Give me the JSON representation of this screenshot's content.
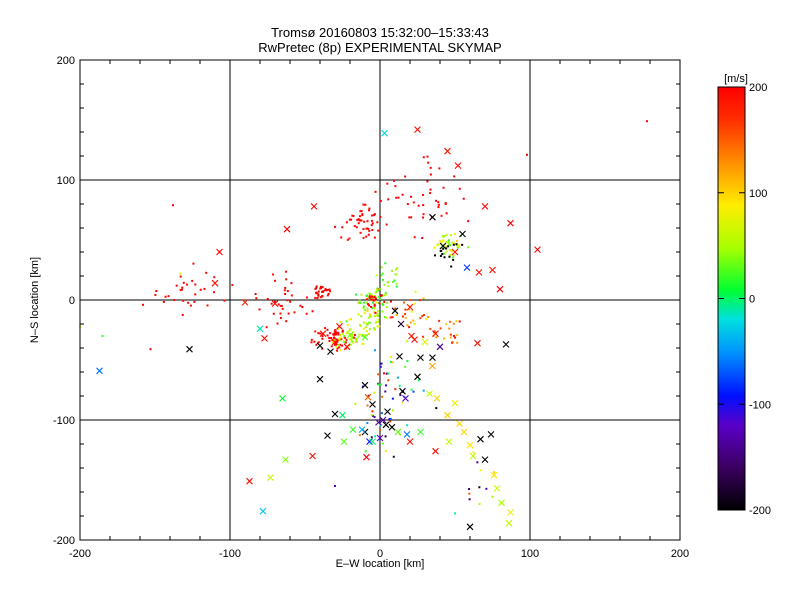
{
  "chart_data": {
    "type": "scatter",
    "title": "Tromsø 20160803 15:32:00–15:33:43",
    "subtitle": "RwPretec (8p) EXPERIMENTAL SKYMAP",
    "xlabel": "E–W location [km]",
    "ylabel": "N–S location [km]",
    "xlim": [
      -200,
      200
    ],
    "ylim": [
      -200,
      200
    ],
    "x_ticks": [
      "-200",
      "-100",
      "0",
      "100",
      "200"
    ],
    "y_ticks": [
      "-200",
      "-100",
      "0",
      "100",
      "200"
    ],
    "grid": true,
    "colorbar": {
      "label": "[m/s]",
      "min": -200,
      "max": 200,
      "ticks": [
        "200",
        "100",
        "0",
        "-100",
        "-200"
      ]
    },
    "markers": {
      "cross": [
        [
          -187,
          -59,
          -60
        ],
        [
          -127,
          -41,
          -200
        ],
        [
          -107,
          40,
          200
        ],
        [
          -110,
          14,
          190
        ],
        [
          -90,
          -2,
          180
        ],
        [
          -87,
          -151,
          190
        ],
        [
          -78,
          -176,
          -30
        ],
        [
          -73,
          -148,
          60
        ],
        [
          -63,
          -133,
          40
        ],
        [
          -65,
          -82,
          10
        ],
        [
          -77,
          -32,
          195
        ],
        [
          -80,
          -24,
          -10
        ],
        [
          -62,
          59,
          200
        ],
        [
          -44,
          78,
          200
        ],
        [
          -70,
          -3,
          200
        ],
        [
          -40,
          -66,
          -200
        ],
        [
          -30,
          -95,
          -200
        ],
        [
          -35,
          -113,
          -200
        ],
        [
          -45,
          -130,
          190
        ],
        [
          -25,
          -96,
          0
        ],
        [
          -38,
          -28,
          195
        ],
        [
          -30,
          -35,
          190
        ],
        [
          -27,
          -22,
          200
        ],
        [
          -22,
          -39,
          195
        ],
        [
          -33,
          -43,
          -200
        ],
        [
          -40,
          -38,
          -210
        ],
        [
          -20,
          -29,
          40
        ],
        [
          -10,
          -31,
          30
        ],
        [
          3,
          139,
          -20
        ],
        [
          25,
          142,
          190
        ],
        [
          45,
          124,
          190
        ],
        [
          52,
          112,
          195
        ],
        [
          70,
          78,
          200
        ],
        [
          87,
          64,
          200
        ],
        [
          105,
          42,
          195
        ],
        [
          35,
          69,
          -200
        ],
        [
          55,
          55,
          -200
        ],
        [
          42,
          45,
          -200
        ],
        [
          58,
          27,
          -80
        ],
        [
          50,
          40,
          190
        ],
        [
          75,
          25,
          190
        ],
        [
          80,
          9,
          200
        ],
        [
          66,
          23,
          190
        ],
        [
          10,
          -9,
          -200
        ],
        [
          20,
          -6,
          180
        ],
        [
          14,
          -20,
          -180
        ],
        [
          21,
          -30,
          190
        ],
        [
          23,
          -33,
          195
        ],
        [
          13,
          -47,
          -200
        ],
        [
          27,
          -48,
          -200
        ],
        [
          35,
          -48,
          -200
        ],
        [
          37,
          -28,
          190
        ],
        [
          30,
          -35,
          70
        ],
        [
          40,
          -39,
          -150
        ],
        [
          35,
          -55,
          120
        ],
        [
          25,
          -64,
          -200
        ],
        [
          33,
          -78,
          60
        ],
        [
          15,
          -76,
          -200
        ],
        [
          17,
          -82,
          -120
        ],
        [
          38,
          -82,
          100
        ],
        [
          45,
          -96,
          100
        ],
        [
          50,
          -86,
          80
        ],
        [
          -10,
          -71,
          -200
        ],
        [
          -8,
          -81,
          150
        ],
        [
          -5,
          -87,
          -200
        ],
        [
          -1,
          -102,
          -140
        ],
        [
          2,
          -100,
          -140
        ],
        [
          4,
          -104,
          -200
        ],
        [
          8,
          -106,
          -200
        ],
        [
          5,
          -93,
          -200
        ],
        [
          -10,
          -110,
          -200
        ],
        [
          -18,
          -108,
          20
        ],
        [
          -7,
          -118,
          -90
        ],
        [
          -12,
          -108,
          -40
        ],
        [
          0,
          -115,
          -120
        ],
        [
          12,
          -110,
          30
        ],
        [
          18,
          -112,
          -60
        ],
        [
          20,
          -118,
          190
        ],
        [
          27,
          -110,
          20
        ],
        [
          37,
          -126,
          190
        ],
        [
          46,
          -118,
          60
        ],
        [
          53,
          -103,
          100
        ],
        [
          56,
          -110,
          100
        ],
        [
          60,
          -121,
          90
        ],
        [
          62,
          -130,
          60
        ],
        [
          67,
          -116,
          -200
        ],
        [
          70,
          -133,
          -200
        ],
        [
          74,
          -112,
          -200
        ],
        [
          76,
          -146,
          90
        ],
        [
          78,
          -157,
          70
        ],
        [
          81,
          -169,
          50
        ],
        [
          86,
          -186,
          60
        ],
        [
          87,
          -177,
          80
        ],
        [
          60,
          -189,
          -200
        ],
        [
          84,
          -37,
          -200
        ],
        [
          65,
          -36,
          190
        ],
        [
          -5,
          -118,
          0
        ],
        [
          -24,
          -118,
          30
        ],
        [
          -9,
          -131,
          200
        ]
      ],
      "dot_clusters": [
        {
          "x": -30,
          "y": -32,
          "sx": 9,
          "sy": 7,
          "n": 70,
          "color": [
            190,
            210
          ]
        },
        {
          "x": -20,
          "y": -32,
          "sx": 10,
          "sy": 8,
          "n": 45,
          "color": [
            30,
            90
          ]
        },
        {
          "x": -8,
          "y": -18,
          "sx": 10,
          "sy": 10,
          "n": 45,
          "color": [
            20,
            100
          ]
        },
        {
          "x": -5,
          "y": 1,
          "sx": 9,
          "sy": 7,
          "n": 50,
          "color": [
            10,
            70
          ]
        },
        {
          "x": -3,
          "y": 0,
          "sx": 7,
          "sy": 7,
          "n": 25,
          "color": [
            190,
            210
          ]
        },
        {
          "x": -40,
          "y": 7,
          "sx": 6,
          "sy": 5,
          "n": 30,
          "color": [
            190,
            210
          ]
        },
        {
          "x": -12,
          "y": 65,
          "sx": 12,
          "sy": 12,
          "n": 50,
          "color": [
            190,
            210
          ]
        },
        {
          "x": 5,
          "y": 18,
          "sx": 8,
          "sy": 12,
          "n": 20,
          "color": [
            10,
            60
          ]
        },
        {
          "x": 47,
          "y": 45,
          "sx": 9,
          "sy": 7,
          "n": 45,
          "color": [
            20,
            100
          ]
        },
        {
          "x": 46,
          "y": 40,
          "sx": 10,
          "sy": 8,
          "n": 15,
          "color": [
            -210,
            -190
          ]
        },
        {
          "x": 30,
          "y": 80,
          "sx": 25,
          "sy": 30,
          "n": 45,
          "color": [
            190,
            210
          ]
        },
        {
          "x": 20,
          "y": -10,
          "sx": 12,
          "sy": 14,
          "n": 25,
          "color": [
            60,
            190
          ]
        },
        {
          "x": 45,
          "y": -25,
          "sx": 15,
          "sy": 15,
          "n": 25,
          "color": [
            100,
            200
          ]
        },
        {
          "x": -125,
          "y": 5,
          "sx": 18,
          "sy": 20,
          "n": 30,
          "color": [
            190,
            210
          ]
        },
        {
          "x": -60,
          "y": -5,
          "sx": 20,
          "sy": 25,
          "n": 35,
          "color": [
            190,
            210
          ]
        },
        {
          "x": 5,
          "y": -70,
          "sx": 20,
          "sy": 25,
          "n": 35,
          "color": [
            -200,
            200
          ]
        },
        {
          "x": 0,
          "y": -100,
          "sx": 15,
          "sy": 25,
          "n": 25,
          "color": [
            -200,
            200
          ]
        },
        {
          "x": 65,
          "y": -150,
          "sx": 15,
          "sy": 25,
          "n": 12,
          "color": [
            -200,
            200
          ]
        }
      ],
      "dots": [
        [
          178,
          149,
          200
        ],
        [
          98,
          121,
          200
        ],
        [
          -138,
          79,
          200
        ],
        [
          -158,
          -4,
          200
        ],
        [
          -185,
          -30,
          20
        ],
        [
          -200,
          -22,
          80
        ],
        [
          -153,
          -41,
          200
        ],
        [
          -133,
          22,
          60
        ],
        [
          -30,
          -155,
          -120
        ],
        [
          -70,
          16,
          190
        ]
      ]
    }
  }
}
